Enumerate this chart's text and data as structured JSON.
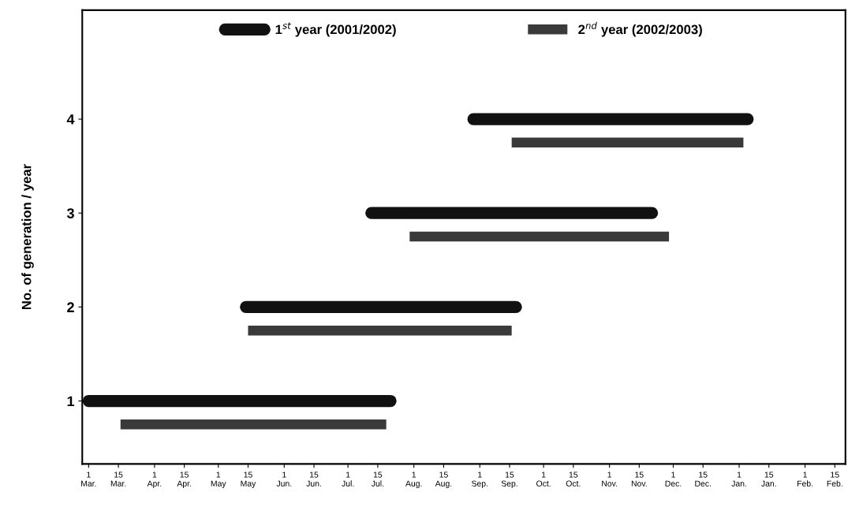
{
  "chart_data": {
    "type": "line",
    "ylabel": "No. of generation / year",
    "series": [
      {
        "name": "1$^{st}$ year (2001/2002)",
        "color": "#111111",
        "x": [
          "2001-03-01",
          "2001-07-21"
        ],
        "values": [
          1,
          1
        ]
      },
      {
        "color": "#111111",
        "x": [
          "2001-05-14",
          "2001-09-18"
        ],
        "values": [
          2,
          2
        ]
      },
      {
        "color": "#111111",
        "x": [
          "2001-07-12",
          "2001-11-21"
        ],
        "values": [
          3,
          3
        ]
      },
      {
        "color": "#111111",
        "x": [
          "2001-08-29",
          "2002-01-05"
        ],
        "values": [
          4,
          4
        ]
      },
      {
        "name": "2$^{nd}$ year (2002/2003)",
        "color": "#3a3a3a",
        "x": [
          "2001-03-16",
          "2001-07-19"
        ],
        "values": [
          0.75,
          0.75
        ]
      },
      {
        "color": "#3a3a3a",
        "x": [
          "2001-05-15",
          "2001-09-16"
        ],
        "values": [
          1.75,
          1.75
        ]
      },
      {
        "color": "#3a3a3a",
        "x": [
          "2001-07-30",
          "2001-11-29"
        ],
        "values": [
          2.75,
          2.75
        ]
      },
      {
        "color": "#3a3a3a",
        "x": [
          "2001-09-16",
          "2002-01-03"
        ],
        "values": [
          3.75,
          3.75
        ]
      }
    ],
    "xlim": [
      "2001-02-26",
      "2002-02-20"
    ],
    "xticks": [
      {
        "value": "2001-03-01",
        "label": "1\nMar."
      },
      {
        "value": "2001-03-15",
        "label": "15\nMar."
      },
      {
        "value": "2001-04-01",
        "label": "1\nApr."
      },
      {
        "value": "2001-04-15",
        "label": "15\nApr."
      },
      {
        "value": "2001-05-01",
        "label": "1\nMay"
      },
      {
        "value": "2001-05-15",
        "label": "15\nMay"
      },
      {
        "value": "2001-06-01",
        "label": "1\nJun."
      },
      {
        "value": "2001-06-15",
        "label": "15\nJun."
      },
      {
        "value": "2001-07-01",
        "label": "1\nJul."
      },
      {
        "value": "2001-07-15",
        "label": "15\nJul."
      },
      {
        "value": "2001-08-01",
        "label": "1\nAug."
      },
      {
        "value": "2001-08-15",
        "label": "15\nAug."
      },
      {
        "value": "2001-09-01",
        "label": "1\nSep."
      },
      {
        "value": "2001-09-15",
        "label": "15\nSep."
      },
      {
        "value": "2001-10-01",
        "label": "1\nOct."
      },
      {
        "value": "2001-10-15",
        "label": "15\nOct."
      },
      {
        "value": "2001-11-01",
        "label": "1\nNov."
      },
      {
        "value": "2001-11-15",
        "label": "15\nNov."
      },
      {
        "value": "2001-12-01",
        "label": "1\nDec."
      },
      {
        "value": "2001-12-15",
        "label": "15\nDec."
      },
      {
        "value": "2002-01-01",
        "label": "1\nJan."
      },
      {
        "value": "2002-01-15",
        "label": "15\nJan."
      },
      {
        "value": "2002-02-01",
        "label": "1\nFeb."
      },
      {
        "value": "2002-02-15",
        "label": "15\nFeb."
      }
    ],
    "ylim": [
      0.33,
      5.16
    ],
    "yticks": [
      1,
      2,
      3,
      4
    ],
    "legend": "top",
    "grid": false
  }
}
